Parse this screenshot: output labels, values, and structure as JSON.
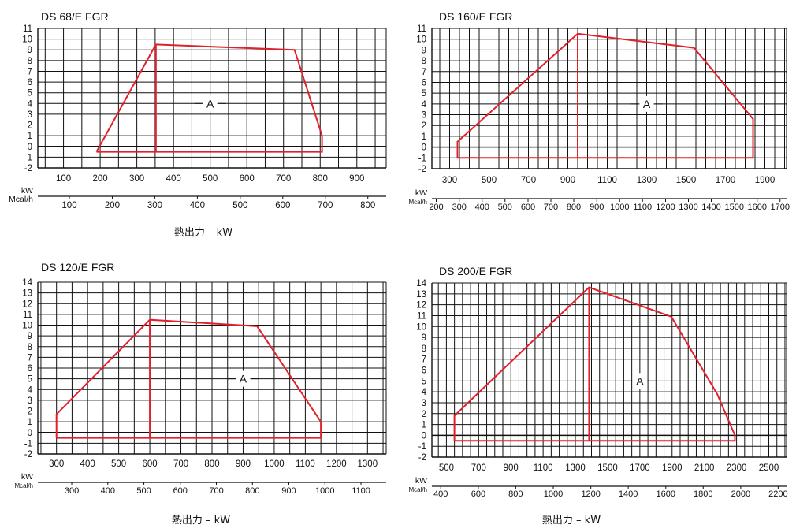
{
  "colors": {
    "envelope": "#e0202a",
    "grid": "#111111",
    "text": "#111111"
  },
  "chart_data": [
    {
      "type": "line",
      "title": "DS 68/E FGR",
      "ylim": [
        -2,
        11
      ],
      "yticks": [
        -2,
        -1,
        0,
        1,
        2,
        3,
        4,
        5,
        6,
        7,
        8,
        9,
        10,
        11
      ],
      "xrange_kw": [
        30,
        980
      ],
      "x_unit": "kW",
      "x_ticks": [
        100,
        200,
        300,
        400,
        500,
        600,
        700,
        800,
        900
      ],
      "x_unit2": "Mcal/h",
      "x2_ticks": [
        {
          "label": "100",
          "kw": 116
        },
        {
          "label": "200",
          "kw": 233
        },
        {
          "label": "300",
          "kw": 349
        },
        {
          "label": "400",
          "kw": 465
        },
        {
          "label": "500",
          "kw": 582
        },
        {
          "label": "600",
          "kw": 698
        },
        {
          "label": "700",
          "kw": 814
        },
        {
          "label": "800",
          "kw": 930
        }
      ],
      "xlabel": "熱出力 – kW",
      "region_label": "A",
      "region_pos": {
        "x": 500,
        "y": 4
      },
      "envelope": [
        [
          190,
          -0.5
        ],
        [
          352,
          9.5
        ],
        [
          730,
          9.0
        ],
        [
          805,
          1.0
        ],
        [
          805,
          -0.5
        ],
        [
          190,
          -0.5
        ]
      ],
      "inner_line": [
        [
          352,
          9.5
        ],
        [
          352,
          -0.5
        ]
      ]
    },
    {
      "type": "line",
      "title": "DS 160/E FGR",
      "ylim": [
        -2,
        11
      ],
      "yticks": [
        -2,
        -1,
        0,
        1,
        2,
        3,
        4,
        5,
        6,
        7,
        8,
        9,
        10,
        11
      ],
      "xrange_kw": [
        210,
        2010
      ],
      "x_unit": "kW",
      "x_ticks": [
        300,
        500,
        700,
        900,
        1100,
        1300,
        1500,
        1700,
        1900
      ],
      "x_unit2": "Mcal/h",
      "x2_ticks": [
        {
          "label": "200",
          "kw": 232
        },
        {
          "label": "300",
          "kw": 349
        },
        {
          "label": "400",
          "kw": 465
        },
        {
          "label": "500",
          "kw": 581
        },
        {
          "label": "600",
          "kw": 698
        },
        {
          "label": "700",
          "kw": 814
        },
        {
          "label": "800",
          "kw": 930
        },
        {
          "label": "900",
          "kw": 1047
        },
        {
          "label": "1000",
          "kw": 1163
        },
        {
          "label": "1100",
          "kw": 1279
        },
        {
          "label": "1200",
          "kw": 1396
        },
        {
          "label": "1300",
          "kw": 1512
        },
        {
          "label": "1400",
          "kw": 1628
        },
        {
          "label": "1500",
          "kw": 1745
        },
        {
          "label": "1600",
          "kw": 1861
        },
        {
          "label": "1700",
          "kw": 1977
        }
      ],
      "xlabel": "",
      "region_label": "A",
      "region_pos": {
        "x": 1300,
        "y": 4
      },
      "envelope": [
        [
          340,
          -1.0
        ],
        [
          340,
          0.5
        ],
        [
          950,
          10.5
        ],
        [
          1540,
          9.2
        ],
        [
          1840,
          2.6
        ],
        [
          1840,
          -1.0
        ],
        [
          340,
          -1.0
        ]
      ],
      "inner_line": [
        [
          950,
          10.5
        ],
        [
          950,
          -1.0
        ]
      ]
    },
    {
      "type": "line",
      "title": "DS 120/E FGR",
      "ylim": [
        -2,
        14
      ],
      "yticks": [
        -2,
        -1,
        0,
        1,
        2,
        3,
        4,
        5,
        6,
        7,
        8,
        9,
        10,
        11,
        12,
        13,
        14
      ],
      "xrange_kw": [
        240,
        1360
      ],
      "x_unit": "kW",
      "x_ticks": [
        300,
        400,
        500,
        600,
        700,
        800,
        900,
        1000,
        1100,
        1200,
        1300
      ],
      "x_unit2": "Mcal/h",
      "x2_ticks": [
        {
          "label": "300",
          "kw": 349
        },
        {
          "label": "400",
          "kw": 465
        },
        {
          "label": "500",
          "kw": 581
        },
        {
          "label": "600",
          "kw": 698
        },
        {
          "label": "700",
          "kw": 814
        },
        {
          "label": "800",
          "kw": 930
        },
        {
          "label": "900",
          "kw": 1047
        },
        {
          "label": "1000",
          "kw": 1163
        },
        {
          "label": "1100",
          "kw": 1279
        }
      ],
      "xlabel": "熱出力 – kW",
      "region_label": "A",
      "region_pos": {
        "x": 900,
        "y": 5
      },
      "envelope": [
        [
          300,
          -0.5
        ],
        [
          300,
          1.7
        ],
        [
          600,
          10.5
        ],
        [
          945,
          9.9
        ],
        [
          1150,
          1.0
        ],
        [
          1150,
          -0.5
        ],
        [
          300,
          -0.5
        ]
      ],
      "inner_line": [
        [
          600,
          10.5
        ],
        [
          600,
          -0.5
        ]
      ]
    },
    {
      "type": "line",
      "title": "DS 200/E FGR",
      "ylim": [
        -2,
        14
      ],
      "yticks": [
        -2,
        -1,
        0,
        1,
        2,
        3,
        4,
        5,
        6,
        7,
        8,
        9,
        10,
        11,
        12,
        13,
        14
      ],
      "xrange_kw": [
        410,
        2610
      ],
      "x_unit": "kW",
      "x_ticks": [
        500,
        700,
        900,
        1100,
        1300,
        1500,
        1700,
        1900,
        2100,
        2300,
        2500
      ],
      "x_unit2": "Mcal/h",
      "x2_ticks": [
        {
          "label": "400",
          "kw": 465
        },
        {
          "label": "600",
          "kw": 698
        },
        {
          "label": "800",
          "kw": 930
        },
        {
          "label": "1000",
          "kw": 1163
        },
        {
          "label": "1200",
          "kw": 1396
        },
        {
          "label": "1400",
          "kw": 1628
        },
        {
          "label": "1600",
          "kw": 1861
        },
        {
          "label": "1800",
          "kw": 2093
        },
        {
          "label": "2000",
          "kw": 2326
        },
        {
          "label": "2200",
          "kw": 2558
        }
      ],
      "xlabel": "熱出力 – kW",
      "region_label": "A",
      "region_pos": {
        "x": 1700,
        "y": 5
      },
      "envelope": [
        [
          550,
          -0.5
        ],
        [
          550,
          1.8
        ],
        [
          1385,
          13.6
        ],
        [
          1895,
          10.9
        ],
        [
          2180,
          3.8
        ],
        [
          2290,
          0.0
        ],
        [
          2290,
          -0.5
        ],
        [
          550,
          -0.5
        ]
      ],
      "inner_line": [
        [
          1385,
          13.6
        ],
        [
          1385,
          -0.5
        ]
      ]
    }
  ]
}
